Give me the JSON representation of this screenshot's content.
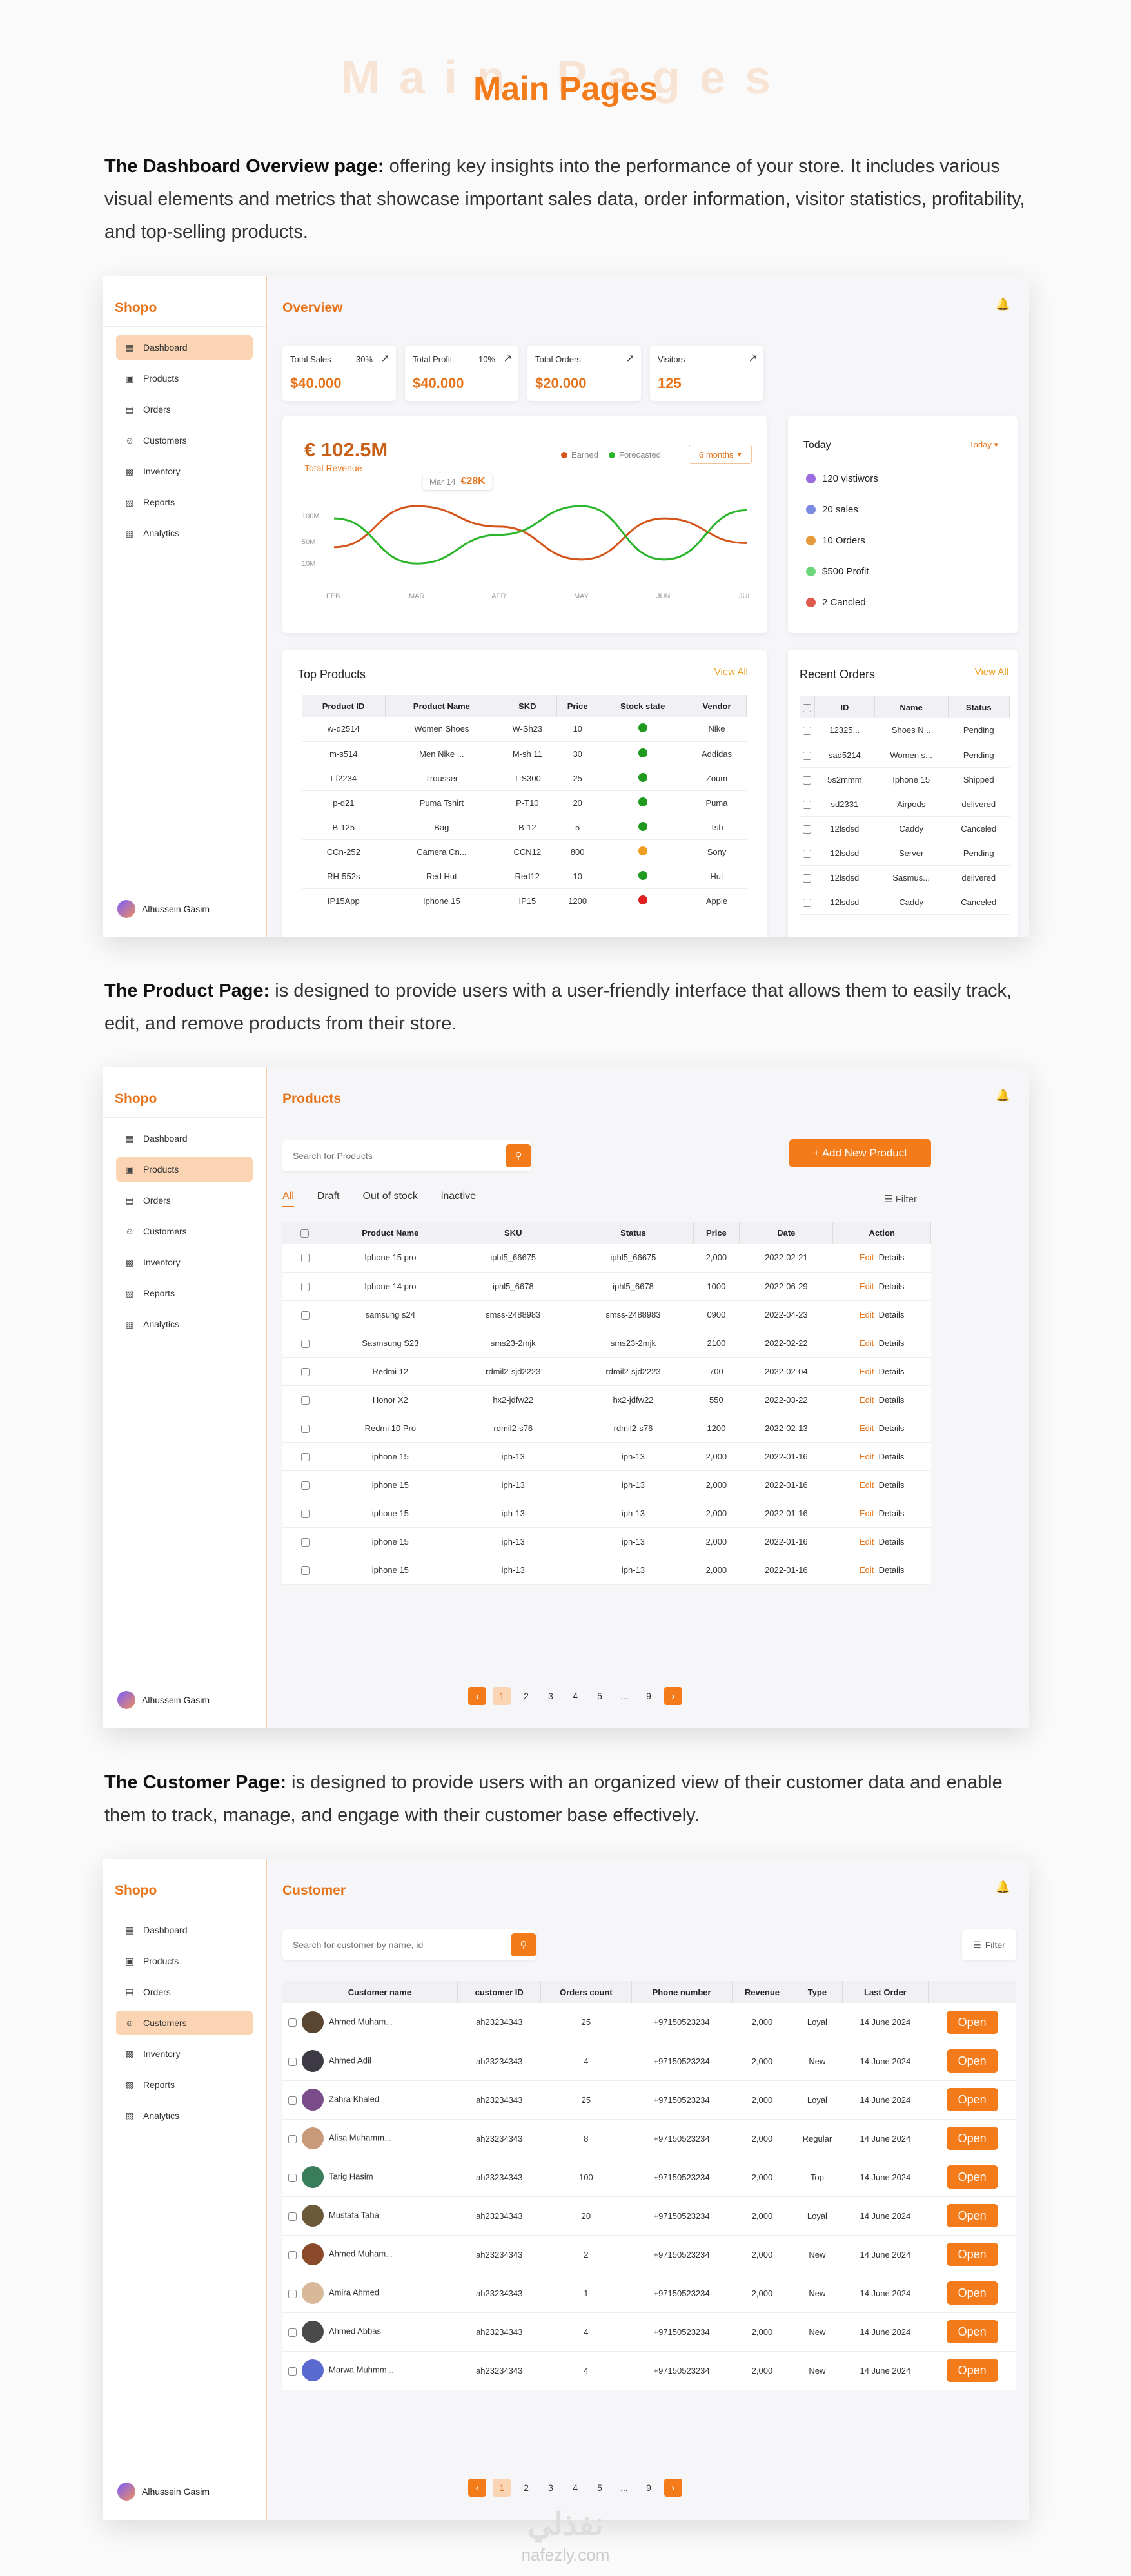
{
  "header": {
    "ghost": "Main Pages",
    "title": "Main Pages"
  },
  "sections": {
    "dashboard": {
      "bold": "The Dashboard Overview page:",
      "text": " offering key insights into the performance of your store. It includes various visual elements and metrics that showcase important sales data, order information, visitor statistics, profitability, and top-selling products."
    },
    "product": {
      "bold": "The Product Page:",
      "text": " is designed to provide users with a user-friendly interface that allows them to easily track, edit, and remove products from their store."
    },
    "customer": {
      "bold": "The Customer Page:",
      "text": " is designed to provide users with an organized view of their customer data and enable them to track, manage, and engage with their customer base effectively."
    }
  },
  "sidebar": {
    "brand": "Shopo",
    "items": [
      {
        "label": "Dashboard",
        "icon": "grid-icon"
      },
      {
        "label": "Products",
        "icon": "box-icon"
      },
      {
        "label": "Orders",
        "icon": "clipboard-icon"
      },
      {
        "label": "Customers",
        "icon": "users-icon"
      },
      {
        "label": "Inventory",
        "icon": "truck-icon"
      },
      {
        "label": "Reports",
        "icon": "report-icon"
      },
      {
        "label": "Analytics",
        "icon": "analytics-icon"
      }
    ],
    "user": "Alhussein Gasim"
  },
  "dash": {
    "title": "Overview",
    "stats": [
      {
        "label": "Total Sales",
        "pct": "30%",
        "value": "$40.000"
      },
      {
        "label": "Total Profit",
        "pct": "10%",
        "value": "$40.000"
      },
      {
        "label": "Total Orders",
        "pct": "",
        "value": "$20.000"
      },
      {
        "label": "Visitors",
        "pct": "",
        "value": "125"
      }
    ],
    "revenue": {
      "value": "€ 102.5M",
      "label": "Total Revenue",
      "legend_earned": "Earned",
      "legend_forecast": "Forecasted",
      "range": "6 months",
      "tooltip_date": "Mar 14",
      "tooltip_value": "€28K"
    },
    "chart_data": {
      "type": "line",
      "categories": [
        "FEB",
        "MAR",
        "APR",
        "MAY",
        "JUN",
        "JUL"
      ],
      "yticks": [
        "100M",
        "50M",
        "10M"
      ],
      "series": [
        {
          "name": "Earned",
          "color": "#d4541a",
          "values": [
            45,
            95,
            70,
            30,
            80,
            50
          ]
        },
        {
          "name": "Forecasted",
          "color": "#2ab52a",
          "values": [
            80,
            25,
            60,
            95,
            30,
            90
          ]
        }
      ],
      "ylim": [
        0,
        110
      ]
    },
    "today": {
      "title": "Today",
      "select": "Today",
      "items": [
        {
          "text": "120 vistiwors",
          "color": "#9b6be0"
        },
        {
          "text": "20 sales",
          "color": "#7c8ae0"
        },
        {
          "text": "10 Orders",
          "color": "#e39a3d"
        },
        {
          "text": "$500 Profit",
          "color": "#6bd67b"
        },
        {
          "text": "2 Cancled",
          "color": "#e0594f"
        }
      ]
    },
    "top_products": {
      "title": "Top Products",
      "view_all": "View All",
      "headers": [
        "Product ID",
        "Product Name",
        "SKD",
        "Price",
        "Stock state",
        "Vendor"
      ],
      "rows": [
        [
          "w-d2514",
          "Women Shoes",
          "W-Sh23",
          "10",
          "#1f9a1f",
          "Nike"
        ],
        [
          "m-s514",
          "Men Nike ...",
          "M-sh 11",
          "30",
          "#1f9a1f",
          "Addidas"
        ],
        [
          "t-f2234",
          "Trousser",
          "T-S300",
          "25",
          "#1f9a1f",
          "Zoum"
        ],
        [
          "p-d21",
          "Puma Tshirt",
          "P-T10",
          "20",
          "#1f9a1f",
          "Puma"
        ],
        [
          "B-125",
          "Bag",
          "B-12",
          "5",
          "#1f9a1f",
          "Tsh"
        ],
        [
          "CCn-252",
          "Camera Cn...",
          "CCN12",
          "800",
          "#f0a020",
          "Sony"
        ],
        [
          "RH-552s",
          "Red Hut",
          "Red12",
          "10",
          "#1f9a1f",
          "Hut"
        ],
        [
          "IP15App",
          "Iphone 15",
          "IP15",
          "1200",
          "#e02020",
          "Apple"
        ]
      ]
    },
    "recent_orders": {
      "title": "Recent Orders",
      "view_all": "View All",
      "headers": [
        "ID",
        "Name",
        "Status"
      ],
      "rows": [
        [
          "12325...",
          "Shoes N...",
          "Pending"
        ],
        [
          "sad5214",
          "Women s...",
          "Pending"
        ],
        [
          "5s2mmm",
          "Iphone 15",
          "Shipped"
        ],
        [
          "sd2331",
          "Airpods",
          "delivered"
        ],
        [
          "12lsdsd",
          "Caddy",
          "Canceled"
        ],
        [
          "12lsdsd",
          "Server",
          "Pending"
        ],
        [
          "12lsdsd",
          "Sasmus...",
          "delivered"
        ],
        [
          "12lsdsd",
          "Caddy",
          "Canceled"
        ]
      ]
    }
  },
  "products": {
    "title": "Products",
    "search_placeholder": "Search for Products",
    "add_button": "+ Add New Product",
    "tabs": [
      "All",
      "Draft",
      "Out of stock",
      "inactive"
    ],
    "filter": "Filter",
    "headers": [
      "Product Name",
      "SKU",
      "Status",
      "Price",
      "Date",
      "Action"
    ],
    "edit": "Edit",
    "details": "Details",
    "rows": [
      [
        "Iphone 15 pro",
        "iphl5_66675",
        "iphl5_66675",
        "2,000",
        "2022-02-21"
      ],
      [
        "Iphone 14 pro",
        "iphl5_6678",
        "iphl5_6678",
        "1000",
        "2022-06-29"
      ],
      [
        "samsung s24",
        "smss-2488983",
        "smss-2488983",
        "0900",
        "2022-04-23"
      ],
      [
        "Sasmsung S23",
        "sms23-2mjk",
        "sms23-2mjk",
        "2100",
        "2022-02-22"
      ],
      [
        "Redmi 12",
        "rdmil2-sjd2223",
        "rdmil2-sjd2223",
        "700",
        "2022-02-04"
      ],
      [
        "Honor X2",
        "hx2-jdfw22",
        "hx2-jdfw22",
        "550",
        "2022-03-22"
      ],
      [
        "Redmi 10 Pro",
        "rdmil2-s76",
        "rdmil2-s76",
        "1200",
        "2022-02-13"
      ],
      [
        "iphone 15",
        "iph-13",
        "iph-13",
        "2,000",
        "2022-01-16"
      ],
      [
        "iphone 15",
        "iph-13",
        "iph-13",
        "2,000",
        "2022-01-16"
      ],
      [
        "iphone 15",
        "iph-13",
        "iph-13",
        "2,000",
        "2022-01-16"
      ],
      [
        "iphone 15",
        "iph-13",
        "iph-13",
        "2,000",
        "2022-01-16"
      ],
      [
        "iphone 15",
        "iph-13",
        "iph-13",
        "2,000",
        "2022-01-16"
      ]
    ],
    "pages": [
      "1",
      "2",
      "3",
      "4",
      "5",
      "...",
      "9"
    ]
  },
  "customers": {
    "title": "Customer",
    "search_placeholder": "Search for customer by name, id",
    "filter": "Filter",
    "headers": [
      "Customer name",
      "customer ID",
      "Orders count",
      "Phone number",
      "Revenue",
      "Type",
      "Last Order"
    ],
    "open": "Open",
    "rows": [
      [
        "Ahmed Muham...",
        "ah23234343",
        "25",
        "+97150523234",
        "2,000",
        "Loyal",
        "14 June 2024",
        "#5a4630"
      ],
      [
        "Ahmed Adil",
        "ah23234343",
        "4",
        "+97150523234",
        "2,000",
        "New",
        "14 June 2024",
        "#3d3a45"
      ],
      [
        "Zahra Khaled",
        "ah23234343",
        "25",
        "+97150523234",
        "2,000",
        "Loyal",
        "14 June 2024",
        "#7a4c8a"
      ],
      [
        "Alisa Muhamm...",
        "ah23234343",
        "8",
        "+97150523234",
        "2,000",
        "Regular",
        "14 June 2024",
        "#c89a7a"
      ],
      [
        "Tarig Hasim",
        "ah23234343",
        "100",
        "+97150523234",
        "2,000",
        "Top",
        "14 June 2024",
        "#3a7d5a"
      ],
      [
        "Mustafa Taha",
        "ah23234343",
        "20",
        "+97150523234",
        "2,000",
        "Loyal",
        "14 June 2024",
        "#6b5a3a"
      ],
      [
        "Ahmed Muham...",
        "ah23234343",
        "2",
        "+97150523234",
        "2,000",
        "New",
        "14 June 2024",
        "#8a4a2a"
      ],
      [
        "Amira Ahmed",
        "ah23234343",
        "1",
        "+97150523234",
        "2,000",
        "New",
        "14 June 2024",
        "#d9b89a"
      ],
      [
        "Ahmed Abbas",
        "ah23234343",
        "4",
        "+97150523234",
        "2,000",
        "New",
        "14 June 2024",
        "#4a4a4a"
      ],
      [
        "Marwa Muhmm...",
        "ah23234343",
        "4",
        "+97150523234",
        "2,000",
        "New",
        "14 June 2024",
        "#5a6ad0"
      ]
    ],
    "pages": [
      "1",
      "2",
      "3",
      "4",
      "5",
      "...",
      "9"
    ]
  },
  "watermark": {
    "arabic": "نفذلي",
    "latin": "nafezly.com"
  }
}
